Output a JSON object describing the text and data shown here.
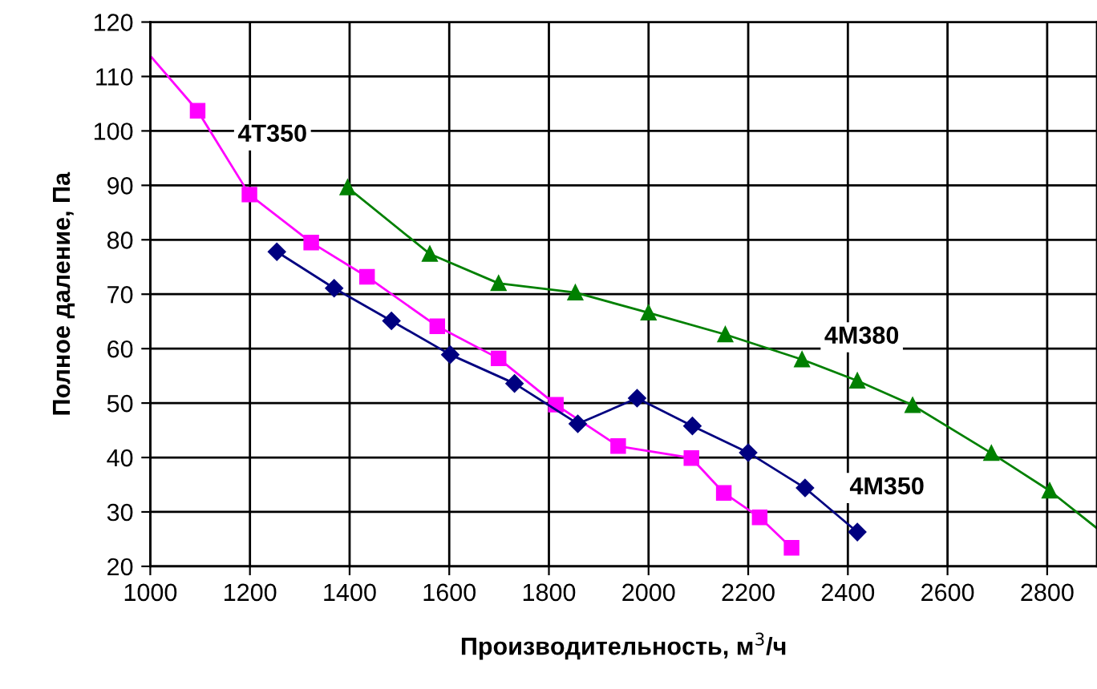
{
  "chart_data": {
    "type": "line",
    "xlabel": "Производительность, м$^{3}$/ч",
    "ylabel": "Полное даление, Па",
    "xlim": [
      1000,
      2900
    ],
    "xticks": [
      1000,
      1200,
      1400,
      1600,
      1800,
      2000,
      2200,
      2400,
      2600,
      2800
    ],
    "ylim": [
      20,
      120
    ],
    "yticks": [
      20,
      30,
      40,
      50,
      60,
      70,
      80,
      90,
      100,
      110,
      120
    ],
    "grid": true,
    "legend": false,
    "line_style": "solid",
    "series": [
      {
        "name": "4T350",
        "color": "#ff00ff",
        "marker": "square",
        "x": [
          1000,
          1095,
          1199,
          1323,
          1435,
          1576,
          1699,
          1814,
          1939,
          2086,
          2151,
          2223,
          2287
        ],
        "values": [
          113.8,
          103.7,
          88.3,
          79.5,
          73.2,
          64.1,
          58.2,
          49.7,
          42.1,
          39.9,
          33.5,
          29,
          23.4
        ]
      },
      {
        "name": "4M380",
        "color": "#008000",
        "marker": "triangle",
        "x": [
          1396,
          1561,
          1699,
          1853,
          2000,
          2154,
          2308,
          2419,
          2530,
          2688,
          2805,
          2900
        ],
        "values": [
          89.6,
          77.4,
          72,
          70.3,
          66.6,
          62.6,
          58,
          54.1,
          49.6,
          40.8,
          33.9,
          27
        ]
      },
      {
        "name": "4M350",
        "color": "#000080",
        "marker": "diamond",
        "x": [
          1254,
          1369,
          1484,
          1602,
          1731,
          1858,
          1977,
          2088,
          2200,
          2314,
          2419
        ],
        "values": [
          77.8,
          71.1,
          65.1,
          58.9,
          53.6,
          46.2,
          50.9,
          45.8,
          40.9,
          34.4,
          26.3
        ]
      }
    ]
  }
}
